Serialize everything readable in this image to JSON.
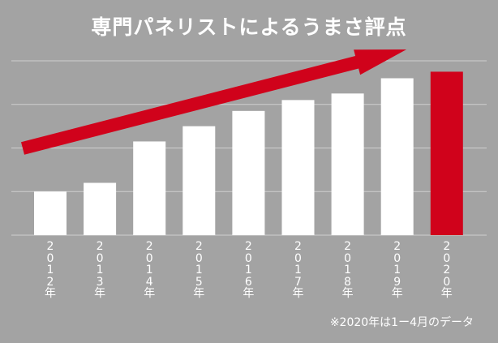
{
  "chart_data": {
    "type": "bar",
    "title": "専門パネリストによるうまさ評点",
    "categories": [
      "2012年",
      "2013年",
      "2014年",
      "2015年",
      "2016年",
      "2017年",
      "2018年",
      "2019年",
      "2020年"
    ],
    "values": [
      1.0,
      1.2,
      2.15,
      2.5,
      2.85,
      3.1,
      3.25,
      3.6,
      3.75
    ],
    "ylim": [
      0,
      4
    ],
    "grid": true,
    "highlight_category": "2020年",
    "trend_arrow": true,
    "footnote": "※2020年は1ー4月のデータ"
  },
  "colors": {
    "background": "#a3a3a3",
    "bar": "#ffffff",
    "highlight_bar": "#d0021b",
    "arrow": "#d0021b",
    "grid": "#cfcfcf",
    "text": "#ffffff"
  }
}
